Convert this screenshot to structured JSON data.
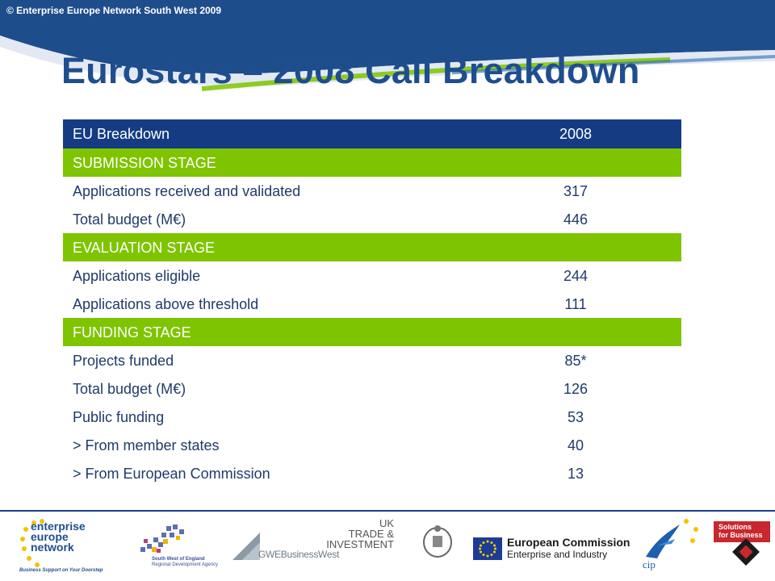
{
  "header": {
    "copyright": "© Enterprise Europe Network South West 2009",
    "title": "Eurostars – 2008 Call Breakdown"
  },
  "table": {
    "header": {
      "label": "EU Breakdown",
      "value": "2008"
    },
    "rows": [
      {
        "type": "stage",
        "label": "SUBMISSION STAGE",
        "value": ""
      },
      {
        "type": "data",
        "label": "Applications received and validated",
        "value": "317"
      },
      {
        "type": "data",
        "label": "Total budget (M€)",
        "value": "446"
      },
      {
        "type": "stage",
        "label": "EVALUATION STAGE",
        "value": ""
      },
      {
        "type": "data",
        "label": "Applications eligible",
        "value": "244"
      },
      {
        "type": "data",
        "label": "Applications above threshold",
        "value": "111"
      },
      {
        "type": "stage",
        "label": "FUNDING STAGE",
        "value": ""
      },
      {
        "type": "data",
        "label": "Projects funded",
        "value": "85*"
      },
      {
        "type": "data",
        "label": "Total budget (M€)",
        "value": "126"
      },
      {
        "type": "data",
        "label": "Public funding",
        "value": "53"
      },
      {
        "type": "data",
        "label": "> From member states",
        "value": "40"
      },
      {
        "type": "data",
        "label": "> From European Commission",
        "value": "13"
      }
    ]
  },
  "footer": {
    "een": {
      "line1": "enterprise",
      "line2": "europe",
      "line3": "network",
      "tagline": "Business Support on Your Doorstep"
    },
    "swrda": {
      "line1": "South West of England",
      "line2": "Regional Development Agency"
    },
    "gwe": {
      "name": "GWEBusinessWest"
    },
    "ukti": {
      "line1": "UK",
      "line2": "TRADE &",
      "line3": "INVESTMENT"
    },
    "ec": {
      "line1": "European Commission",
      "line2": "Enterprise and Industry"
    },
    "cip": {
      "name": "cip"
    },
    "sfb": {
      "line1": "Solutions",
      "line2": "for Business"
    },
    "colors": {
      "navy": "#153c82",
      "green": "#7fc400",
      "title": "#1f4e8f"
    }
  }
}
